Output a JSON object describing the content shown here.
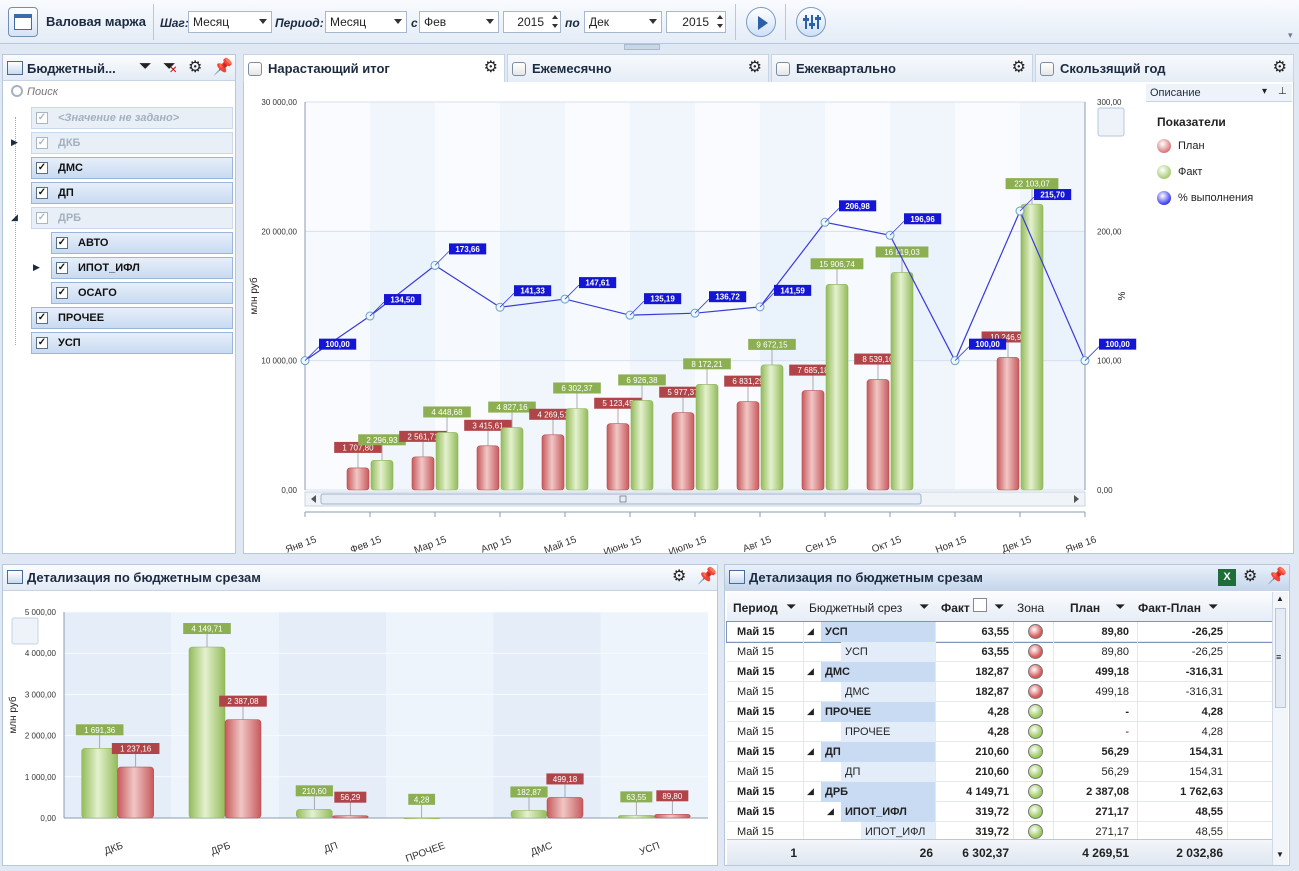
{
  "toolbar": {
    "title": "Валовая маржа",
    "step_label": "Шаг:",
    "step_value": "Месяц",
    "period_label": "Период:",
    "period_value": "Месяц",
    "from_label": "с",
    "from_month": "Фев",
    "from_year": "2015",
    "to_label": "по",
    "to_month": "Дек",
    "to_year": "2015"
  },
  "budget_panel": {
    "title": "Бюджетный...",
    "search_placeholder": "Поиск",
    "items": [
      {
        "label": "<Значение не задано>",
        "checked": true,
        "disabled": true
      },
      {
        "label": "ДКБ",
        "checked": true,
        "disabled": true
      },
      {
        "label": "ДМС",
        "checked": true,
        "disabled": false
      },
      {
        "label": "ДП",
        "checked": true,
        "disabled": false
      },
      {
        "label": "ДРБ",
        "checked": true,
        "disabled": true
      },
      {
        "label": "АВТО",
        "checked": true,
        "disabled": false
      },
      {
        "label": "ИПОТ_ИФЛ",
        "checked": true,
        "disabled": false
      },
      {
        "label": "ОСАГО",
        "checked": true,
        "disabled": false
      },
      {
        "label": "ПРОЧЕЕ",
        "checked": true,
        "disabled": false
      },
      {
        "label": "УСП",
        "checked": true,
        "disabled": false
      }
    ]
  },
  "tabs": [
    "Нарастающий итог",
    "Ежемесячно",
    "Ежеквартально",
    "Скользящий год"
  ],
  "legend": {
    "dropdown": "Описание",
    "title": "Показатели",
    "items": [
      {
        "label": "План",
        "color": "#d9787a"
      },
      {
        "label": "Факт",
        "color": "#a8cc73"
      },
      {
        "label": "% выполнения",
        "color": "#3b3bf0"
      }
    ]
  },
  "chart_data": [
    {
      "type": "bar",
      "ylabel": "млн руб",
      "y2label": "%",
      "ylim": [
        0,
        30000
      ],
      "y2lim": [
        0,
        300
      ],
      "yticks": [
        "0,00",
        "10 000,00",
        "20 000,00",
        "30 000,00"
      ],
      "y2ticks": [
        "0,00",
        "100,00",
        "200,00",
        "300,00"
      ],
      "categories": [
        "Янв 15",
        "Фев 15",
        "Мар 15",
        "Апр 15",
        "Май 15",
        "Июнь 15",
        "Июль 15",
        "Авг 15",
        "Сен 15",
        "Окт 15",
        "Ноя 15",
        "Дек 15",
        "Янв 16"
      ],
      "series": [
        {
          "name": "План",
          "values": [
            null,
            1707.8,
            2561.71,
            3415.61,
            4269.51,
            5123.45,
            5977.37,
            6831.29,
            7685.18,
            8539.1,
            null,
            10246.9,
            null
          ],
          "labels": [
            "",
            "1 707,80",
            "2 561,71",
            "3 415,61",
            "4 269,51",
            "5 123,45",
            "5 977,37",
            "6 831,29",
            "7 685,18",
            "8 539,10",
            "",
            "10 246,90",
            ""
          ]
        },
        {
          "name": "Факт",
          "values": [
            null,
            2296.93,
            4448.68,
            4827.16,
            6302.37,
            6926.38,
            8172.21,
            9672.15,
            15906.74,
            16819.03,
            null,
            22103.07,
            null
          ],
          "labels": [
            "",
            "2 296,93",
            "4 448,68",
            "4 827,16",
            "6 302,37",
            "6 926,38",
            "8 172,21",
            "9 672,15",
            "15 906,74",
            "16 819,03",
            "",
            "22 103,07",
            ""
          ]
        },
        {
          "name": "% выполнения",
          "values": [
            100,
            134.5,
            173.66,
            141.33,
            147.61,
            135.19,
            136.72,
            141.59,
            206.98,
            196.96,
            100,
            215.7,
            100
          ],
          "labels": [
            "100,00",
            "134,50",
            "173,66",
            "141,33",
            "147,61",
            "135,19",
            "136,72",
            "141,59",
            "206,98",
            "196,96",
            "100,00",
            "215,70",
            "100,00"
          ]
        }
      ]
    },
    {
      "type": "bar",
      "ylabel": "млн руб",
      "ylim": [
        0,
        5000
      ],
      "yticks": [
        "0,00",
        "1 000,00",
        "2 000,00",
        "3 000,00",
        "4 000,00",
        "5 000,00"
      ],
      "categories": [
        "ДКБ",
        "ДРБ",
        "ДП",
        "ПРОЧЕЕ",
        "ДМС",
        "УСП"
      ],
      "series": [
        {
          "name": "Факт",
          "values": [
            1691.36,
            4149.71,
            210.6,
            4.28,
            182.87,
            63.55
          ],
          "labels": [
            "1 691,36",
            "4 149,71",
            "210,60",
            "4,28",
            "182,87",
            "63,55"
          ]
        },
        {
          "name": "План",
          "values": [
            1237.16,
            2387.08,
            56.29,
            null,
            499.18,
            89.8
          ],
          "labels": [
            "1 237,16",
            "2 387,08",
            "56,29",
            "",
            "499,18",
            "89,80"
          ]
        }
      ]
    }
  ],
  "detail_chart": {
    "title": "Детализация по бюджетным срезам"
  },
  "grid": {
    "title": "Детализация по бюджетным срезам",
    "headers": [
      "Период",
      "Бюджетный срез",
      "Факт",
      "Зона",
      "План",
      "Факт-План"
    ],
    "rows": [
      {
        "period": "Май 15",
        "slice": "УСП",
        "fact": "63,55",
        "zone": "red",
        "plan": "89,80",
        "diff": "-26,25",
        "group": true,
        "level": 0
      },
      {
        "period": "Май 15",
        "slice": "УСП",
        "fact": "63,55",
        "zone": "red",
        "plan": "89,80",
        "diff": "-26,25",
        "group": false,
        "level": 1
      },
      {
        "period": "Май 15",
        "slice": "ДМС",
        "fact": "182,87",
        "zone": "red",
        "plan": "499,18",
        "diff": "-316,31",
        "group": true,
        "level": 0
      },
      {
        "period": "Май 15",
        "slice": "ДМС",
        "fact": "182,87",
        "zone": "red",
        "plan": "499,18",
        "diff": "-316,31",
        "group": false,
        "level": 1
      },
      {
        "period": "Май 15",
        "slice": "ПРОЧЕЕ",
        "fact": "4,28",
        "zone": "green",
        "plan": "-",
        "diff": "4,28",
        "group": true,
        "level": 0
      },
      {
        "period": "Май 15",
        "slice": "ПРОЧЕЕ",
        "fact": "4,28",
        "zone": "green",
        "plan": "-",
        "diff": "4,28",
        "group": false,
        "level": 1
      },
      {
        "period": "Май 15",
        "slice": "ДП",
        "fact": "210,60",
        "zone": "green",
        "plan": "56,29",
        "diff": "154,31",
        "group": true,
        "level": 0
      },
      {
        "period": "Май 15",
        "slice": "ДП",
        "fact": "210,60",
        "zone": "green",
        "plan": "56,29",
        "diff": "154,31",
        "group": false,
        "level": 1
      },
      {
        "period": "Май 15",
        "slice": "ДРБ",
        "fact": "4 149,71",
        "zone": "green",
        "plan": "2 387,08",
        "diff": "1 762,63",
        "group": true,
        "level": 0
      },
      {
        "period": "Май 15",
        "slice": "ИПОТ_ИФЛ",
        "fact": "319,72",
        "zone": "green",
        "plan": "271,17",
        "diff": "48,55",
        "group": true,
        "level": 1
      },
      {
        "period": "Май 15",
        "slice": "ИПОТ_ИФЛ",
        "fact": "319,72",
        "zone": "green",
        "plan": "271,17",
        "diff": "48,55",
        "group": false,
        "level": 2
      }
    ],
    "footer": {
      "period": "1",
      "slice": "26",
      "fact": "6 302,37",
      "plan": "4 269,51",
      "diff": "2 032,86"
    }
  },
  "colors": {
    "plan": "#d9787a",
    "fact": "#a8cc73",
    "pct": "#2b2bd6",
    "zone_red": "#d95757",
    "zone_green": "#9ccc5f"
  }
}
